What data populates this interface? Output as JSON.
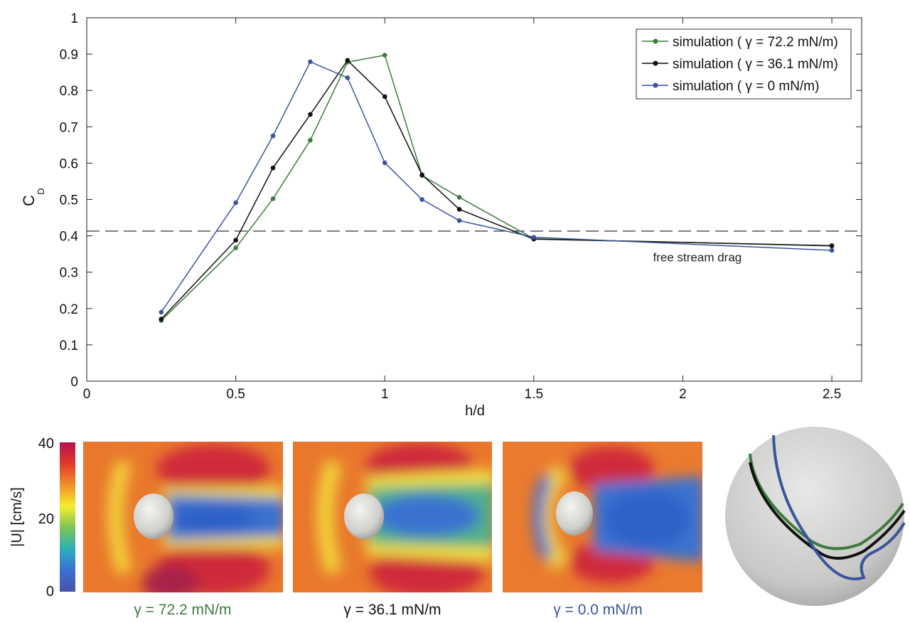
{
  "chart_data": {
    "type": "line",
    "xlabel": "h/d",
    "ylabel_main": "C",
    "ylabel_sub": "D",
    "xlim": [
      0,
      2.6
    ],
    "ylim": [
      0,
      1
    ],
    "xticks": [
      0,
      0.5,
      1,
      1.5,
      2,
      2.5
    ],
    "xtick_labels": [
      "0",
      "0.5",
      "1",
      "1.5",
      "2",
      "2.5"
    ],
    "yticks": [
      0,
      0.1,
      0.2,
      0.3,
      0.4,
      0.5,
      0.6,
      0.7,
      0.8,
      0.9,
      1
    ],
    "ytick_labels": [
      "0",
      "0.1",
      "0.2",
      "0.3",
      "0.4",
      "0.5",
      "0.6",
      "0.7",
      "0.8",
      "0.9",
      "1"
    ],
    "grid": false,
    "legend_position": "top-right",
    "series": [
      {
        "name": "simulation ( γ = 72.2 mN/m)",
        "color": "#3f7a3f",
        "x": [
          0.25,
          0.5,
          0.625,
          0.75,
          0.875,
          1.0,
          1.125,
          1.25,
          1.5,
          2.5
        ],
        "y": [
          0.167,
          0.367,
          0.502,
          0.663,
          0.878,
          0.897,
          0.566,
          0.506,
          0.392,
          0.372
        ]
      },
      {
        "name": "simulation ( γ = 36.1 mN/m)",
        "color": "#111111",
        "x": [
          0.25,
          0.5,
          0.625,
          0.75,
          0.875,
          1.0,
          1.125,
          1.25,
          1.5,
          2.5
        ],
        "y": [
          0.171,
          0.388,
          0.587,
          0.734,
          0.883,
          0.783,
          0.568,
          0.473,
          0.391,
          0.373
        ]
      },
      {
        "name": "simulation ( γ = 0 mN/m)",
        "color": "#3b559c",
        "x": [
          0.25,
          0.5,
          0.625,
          0.75,
          0.875,
          1.0,
          1.125,
          1.25,
          1.5,
          2.5
        ],
        "y": [
          0.19,
          0.491,
          0.675,
          0.879,
          0.835,
          0.601,
          0.5,
          0.442,
          0.396,
          0.36
        ]
      }
    ],
    "reference_line": {
      "y": 0.413,
      "style": "dashed",
      "color": "#444444"
    },
    "annotation": {
      "text": "free stream drag",
      "x": 1.9,
      "y": 0.33
    }
  },
  "colorbar": {
    "label": "|U| [cm/s]",
    "ticks": [
      "40",
      "20",
      "0"
    ],
    "colors": [
      "#b5124d",
      "#e23a2a",
      "#f0902a",
      "#f5ee2e",
      "#7cc456",
      "#2bb0b8",
      "#3b6fd4",
      "#4a52a8"
    ]
  },
  "panels": [
    {
      "caption": "γ = 72.2 mN/m",
      "caption_color": "#3f7a3f"
    },
    {
      "caption": "γ = 36.1 mN/m",
      "caption_color": "#111111"
    },
    {
      "caption": "γ = 0.0 mN/m",
      "caption_color": "#3b559c"
    }
  ],
  "sphere": {
    "contour_colors": [
      "#3f7a3f",
      "#111111",
      "#3b559c"
    ]
  }
}
